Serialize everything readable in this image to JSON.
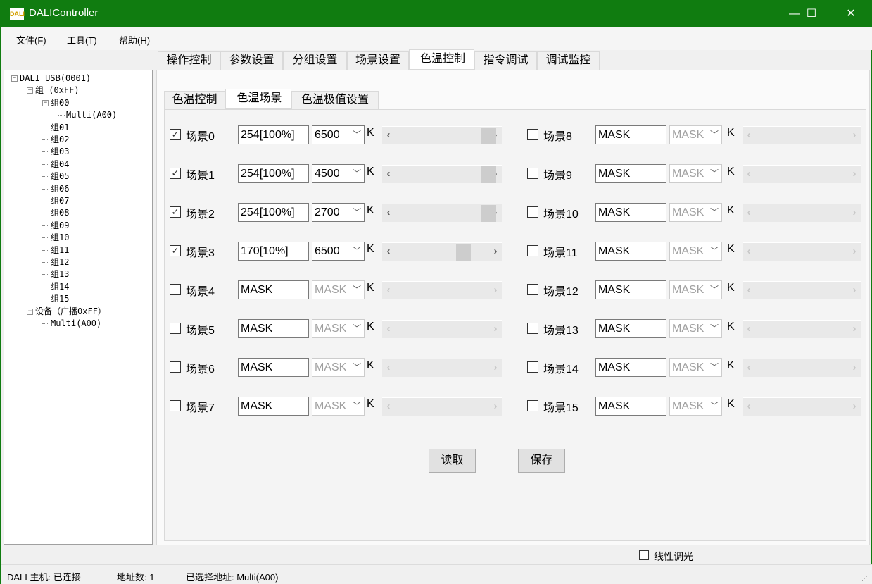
{
  "window": {
    "title": "DALIController",
    "logo_text": "DALI",
    "minimize": "—",
    "maximize": "☐",
    "close": "✕"
  },
  "menu": [
    "文件(F)",
    "工具(T)",
    "帮助(H)"
  ],
  "tree": [
    {
      "label": "DALI USB(0001)",
      "level": 0,
      "exp": "−"
    },
    {
      "label": "组 (0xFF)",
      "level": 1,
      "exp": "−"
    },
    {
      "label": "组00",
      "level": 2,
      "exp": "−"
    },
    {
      "label": "Multi(A00)",
      "level": 3
    },
    {
      "label": "组01",
      "level": 2
    },
    {
      "label": "组02",
      "level": 2
    },
    {
      "label": "组03",
      "level": 2
    },
    {
      "label": "组04",
      "level": 2
    },
    {
      "label": "组05",
      "level": 2
    },
    {
      "label": "组06",
      "level": 2
    },
    {
      "label": "组07",
      "level": 2
    },
    {
      "label": "组08",
      "level": 2
    },
    {
      "label": "组09",
      "level": 2
    },
    {
      "label": "组10",
      "level": 2
    },
    {
      "label": "组11",
      "level": 2
    },
    {
      "label": "组12",
      "level": 2
    },
    {
      "label": "组13",
      "level": 2
    },
    {
      "label": "组14",
      "level": 2
    },
    {
      "label": "组15",
      "level": 2
    },
    {
      "label": "设备（广播0xFF）",
      "level": 1,
      "exp": "−"
    },
    {
      "label": "Multi(A00)",
      "level": 2
    }
  ],
  "outer_tabs": [
    "操作控制",
    "参数设置",
    "分组设置",
    "场景设置",
    "色温控制",
    "指令调试",
    "调试监控"
  ],
  "outer_selected": 4,
  "inner_tabs": [
    "色温控制",
    "色温场景",
    "色温极值设置"
  ],
  "inner_selected": 1,
  "unit": "K",
  "scenes": [
    {
      "label": "场景0",
      "checked": true,
      "level": "254[100%]",
      "temp": "6500",
      "slider": 1.0
    },
    {
      "label": "场景1",
      "checked": true,
      "level": "254[100%]",
      "temp": "4500",
      "slider": 1.0
    },
    {
      "label": "场景2",
      "checked": true,
      "level": "254[100%]",
      "temp": "2700",
      "slider": 1.0
    },
    {
      "label": "场景3",
      "checked": true,
      "level": "170[10%]",
      "temp": "6500",
      "slider": 0.68
    },
    {
      "label": "场景4",
      "checked": false,
      "level": "MASK",
      "temp": "MASK"
    },
    {
      "label": "场景5",
      "checked": false,
      "level": "MASK",
      "temp": "MASK"
    },
    {
      "label": "场景6",
      "checked": false,
      "level": "MASK",
      "temp": "MASK"
    },
    {
      "label": "场景7",
      "checked": false,
      "level": "MASK",
      "temp": "MASK"
    },
    {
      "label": "场景8",
      "checked": false,
      "level": "MASK",
      "temp": "MASK"
    },
    {
      "label": "场景9",
      "checked": false,
      "level": "MASK",
      "temp": "MASK"
    },
    {
      "label": "场景10",
      "checked": false,
      "level": "MASK",
      "temp": "MASK"
    },
    {
      "label": "场景11",
      "checked": false,
      "level": "MASK",
      "temp": "MASK"
    },
    {
      "label": "场景12",
      "checked": false,
      "level": "MASK",
      "temp": "MASK"
    },
    {
      "label": "场景13",
      "checked": false,
      "level": "MASK",
      "temp": "MASK"
    },
    {
      "label": "场景14",
      "checked": false,
      "level": "MASK",
      "temp": "MASK"
    },
    {
      "label": "场景15",
      "checked": false,
      "level": "MASK",
      "temp": "MASK"
    }
  ],
  "buttons": {
    "read": "读取",
    "save": "保存"
  },
  "linear_dimming": {
    "label": "线性调光",
    "checked": false
  },
  "status": {
    "host": "DALI 主机: 已连接",
    "count": "地址数: 1",
    "selected": "已选择地址: Multi(A00)"
  },
  "colors": {
    "titlebar": "#107c10"
  }
}
